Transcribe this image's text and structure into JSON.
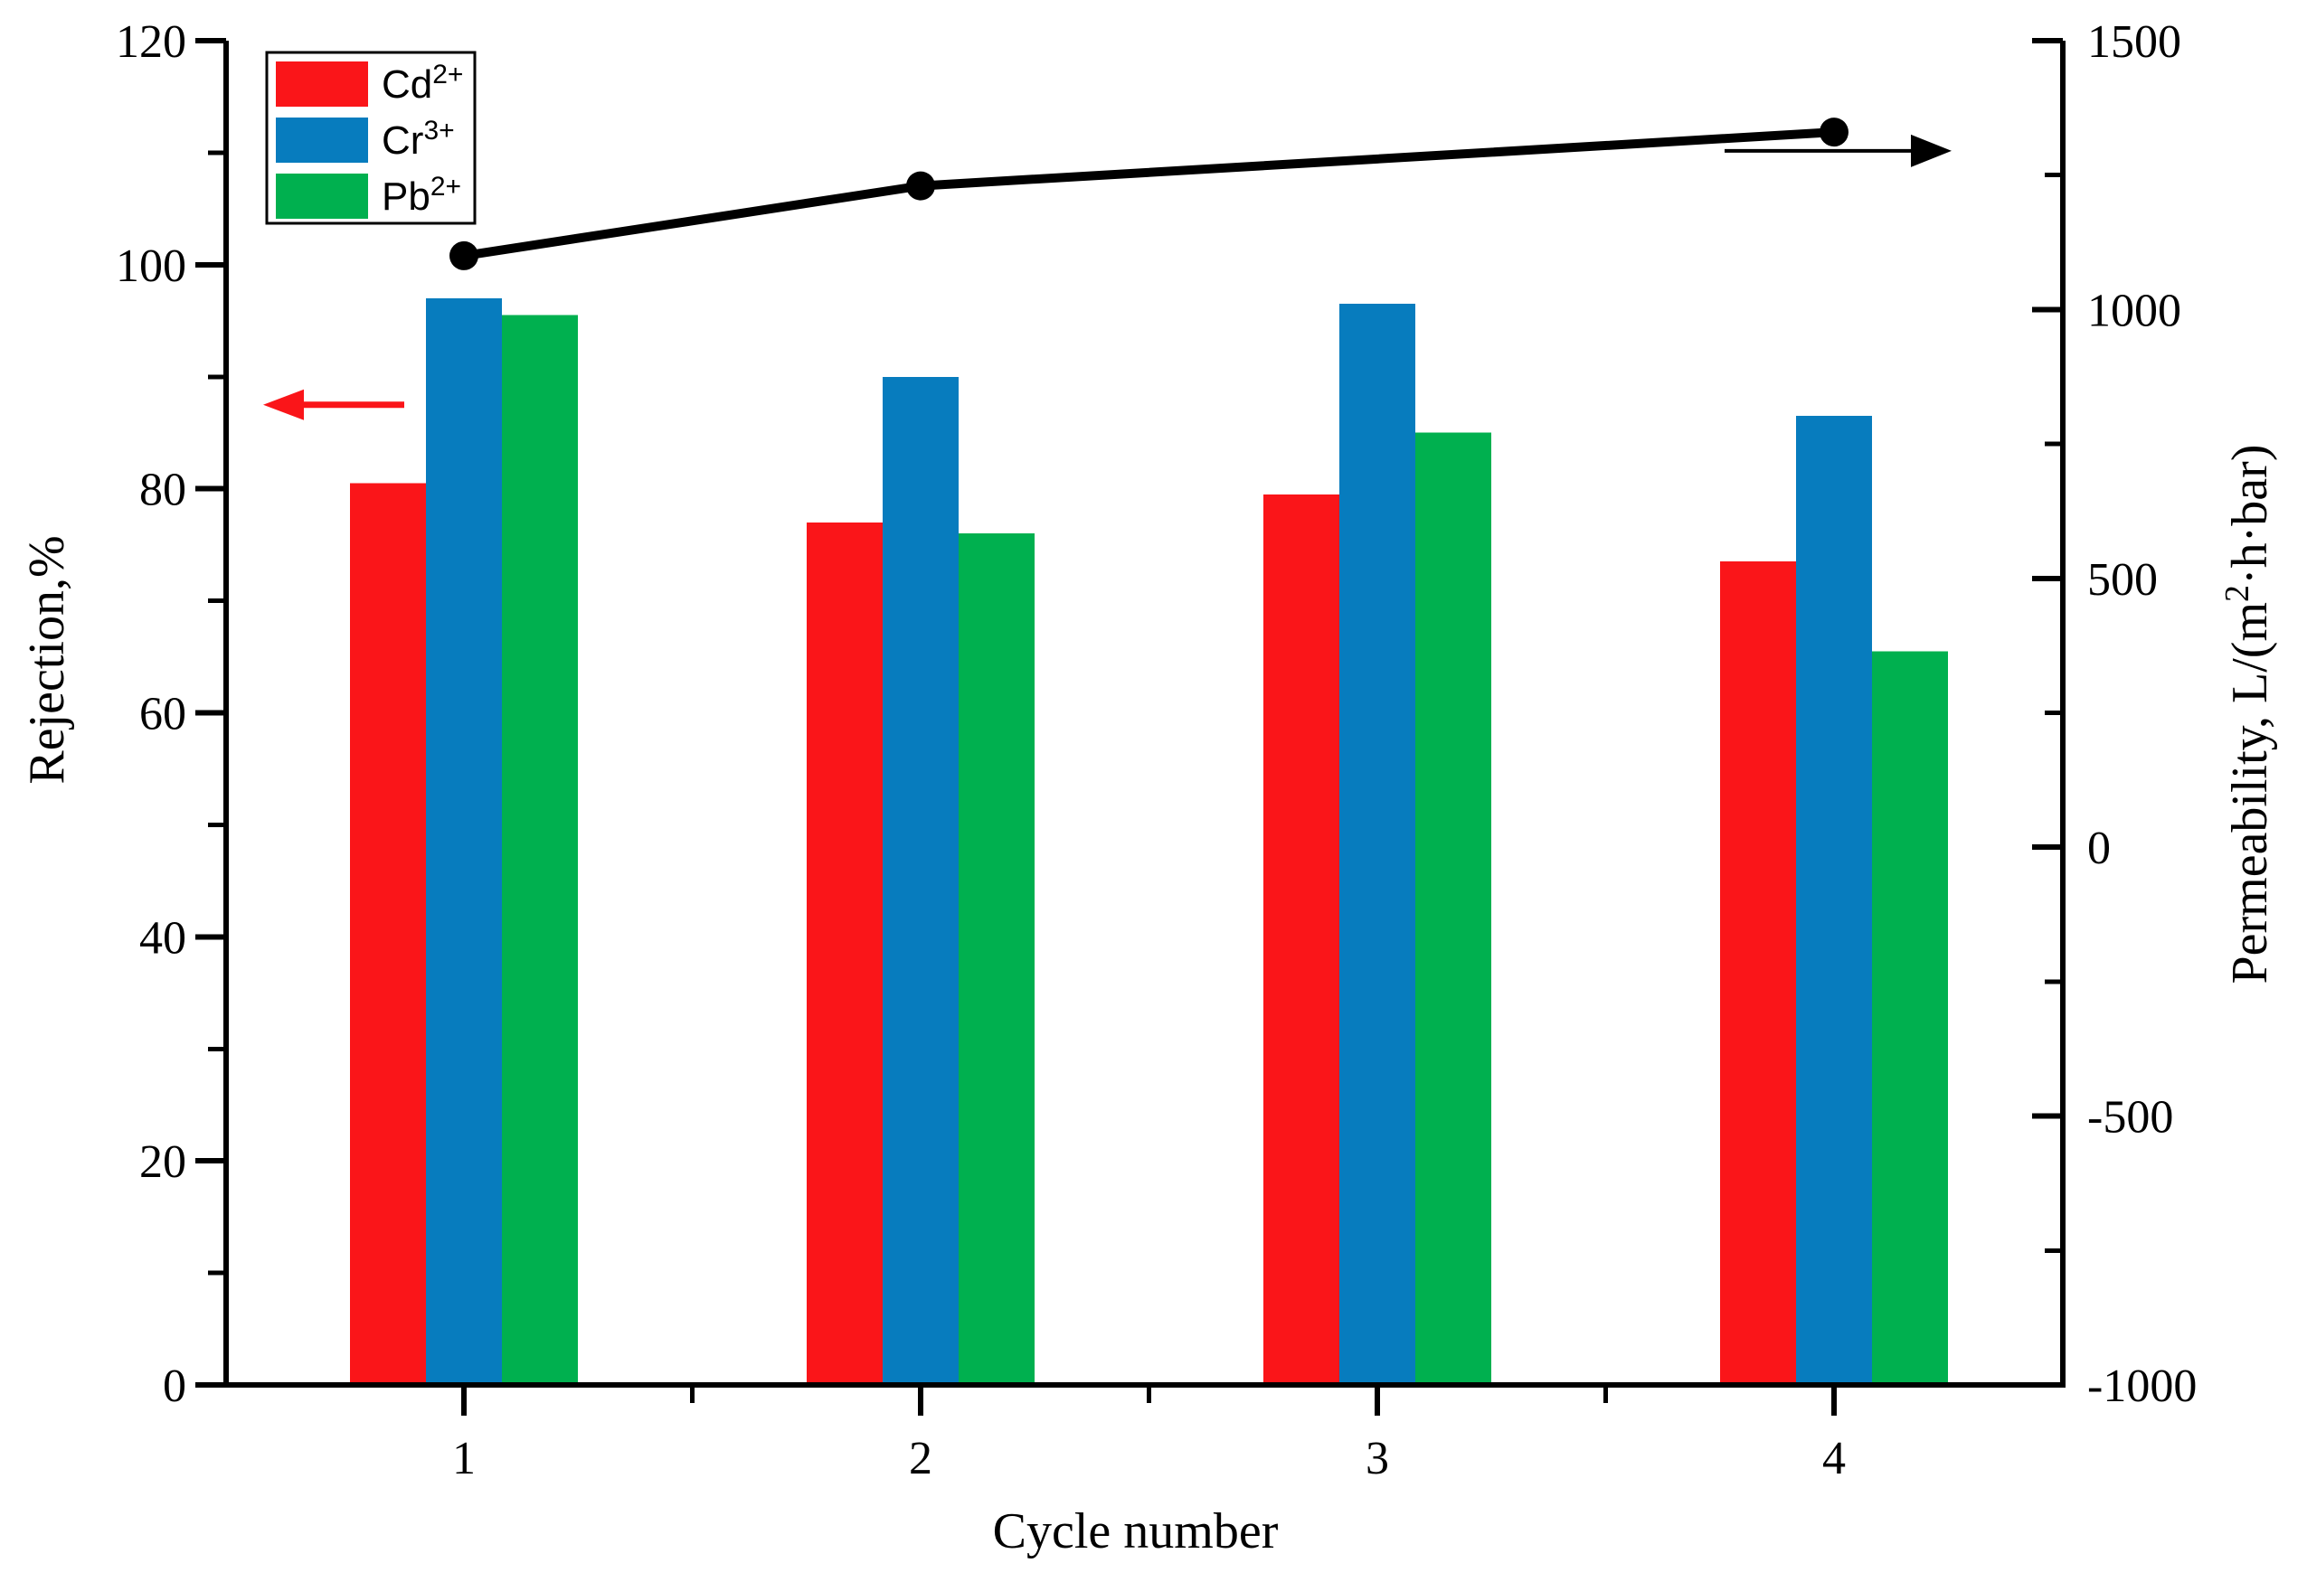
{
  "chart_data": {
    "type": "bar",
    "title": "",
    "xlabel": "Cycle number",
    "categories": [
      "1",
      "2",
      "3",
      "4"
    ],
    "series": [
      {
        "name": "Cd2+",
        "label_parts": [
          {
            "t": "Cd"
          },
          {
            "t": "2+",
            "sup": true
          }
        ],
        "color": "#FA1519",
        "values": [
          80.5,
          77,
          79.5,
          73.5
        ]
      },
      {
        "name": "Cr3+",
        "label_parts": [
          {
            "t": "Cr"
          },
          {
            "t": "3+",
            "sup": true
          }
        ],
        "color": "#077CBE",
        "values": [
          97,
          90,
          96.5,
          86.5
        ]
      },
      {
        "name": "Pb2+",
        "label_parts": [
          {
            "t": "Pb"
          },
          {
            "t": "2+",
            "sup": true
          }
        ],
        "color": "#00B04F",
        "values": [
          95.5,
          76,
          85,
          65.5
        ]
      }
    ],
    "line_series": {
      "name": "Permeability",
      "color": "#000000",
      "points": [
        {
          "x": 1,
          "y": 1100
        },
        {
          "x": 2,
          "y": 1230
        },
        {
          "x": 4,
          "y": 1330
        }
      ]
    },
    "left_axis": {
      "label": "Rejection,%",
      "min": 0,
      "max": 120,
      "tick_step": 20,
      "minor_step": 10,
      "tick_labels": [
        "0",
        "20",
        "40",
        "60",
        "80",
        "100",
        "120"
      ]
    },
    "right_axis": {
      "label": "Permeability, L/(m2·h·bar)",
      "label_parts": [
        {
          "t": "Permeability, L/(m"
        },
        {
          "t": "2",
          "sup": true
        },
        {
          "t": "·h·bar)"
        }
      ],
      "min": -1000,
      "max": 1500,
      "tick_step": 500,
      "minor_step": 250,
      "tick_labels": [
        "-1000",
        "-500",
        "0",
        "500",
        "1000",
        "1500"
      ]
    },
    "legend_position": "top-left",
    "grid": false,
    "annotations": [
      {
        "type": "arrow",
        "direction": "left",
        "axis": "left",
        "y_value": 87.5,
        "color": "#FA1519"
      },
      {
        "type": "arrow",
        "direction": "right",
        "axis": "right",
        "y_value": 1295,
        "color": "#000000"
      }
    ]
  }
}
